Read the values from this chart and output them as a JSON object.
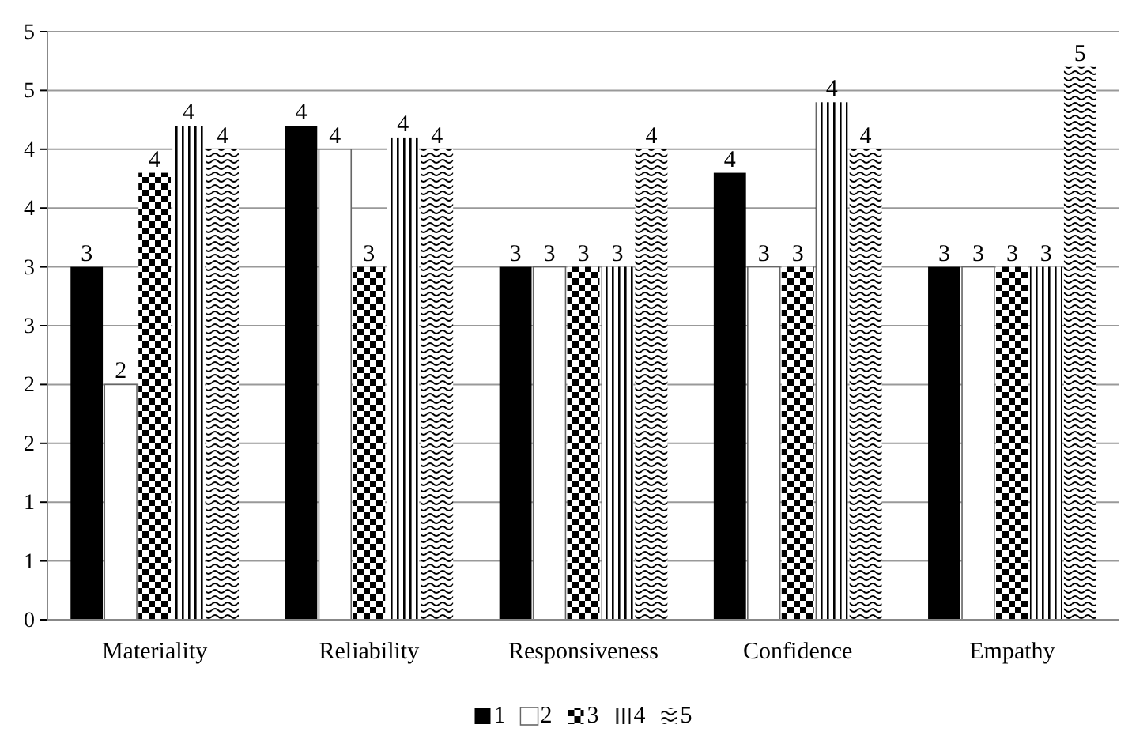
{
  "chart_data": {
    "type": "bar",
    "categories": [
      "Materiality",
      "Reliability",
      "Responsiveness",
      "Confidence",
      "Empathy"
    ],
    "series": [
      {
        "name": "1",
        "color": "#000000",
        "values": [
          3.0,
          4.2,
          3.0,
          3.8,
          3.0
        ],
        "value_labels": [
          "3",
          "4",
          "3",
          "4",
          "3"
        ]
      },
      {
        "name": "2",
        "color": "#ffffff",
        "values": [
          2.0,
          4.0,
          3.0,
          3.0,
          3.0
        ],
        "value_labels": [
          "2",
          "4",
          "3",
          "3",
          "3"
        ]
      },
      {
        "name": "3",
        "color": "#000000",
        "values": [
          3.8,
          3.0,
          3.0,
          3.0,
          3.0
        ],
        "value_labels": [
          "4",
          "3",
          "3",
          "3",
          "3"
        ]
      },
      {
        "name": "4",
        "color": "#000000",
        "values": [
          4.2,
          4.1,
          3.0,
          4.4,
          3.0
        ],
        "value_labels": [
          "4",
          "4",
          "3",
          "4",
          "3"
        ]
      },
      {
        "name": "5",
        "color": "#000000",
        "values": [
          4.0,
          4.0,
          4.0,
          4.0,
          4.7
        ],
        "value_labels": [
          "4",
          "4",
          "4",
          "4",
          "5"
        ]
      }
    ],
    "ylim": [
      0,
      5
    ],
    "yticks": [
      0,
      {
        "value": 0.5,
        "label": "1"
      },
      1,
      {
        "value": 1.5,
        "label": "2"
      },
      2,
      {
        "value": 2.5,
        "label": "3"
      },
      3,
      {
        "value": 3.5,
        "label": "4"
      },
      4,
      {
        "value": 4.5,
        "label": "5"
      },
      5
    ],
    "grid": "y",
    "legend": "bottom"
  }
}
